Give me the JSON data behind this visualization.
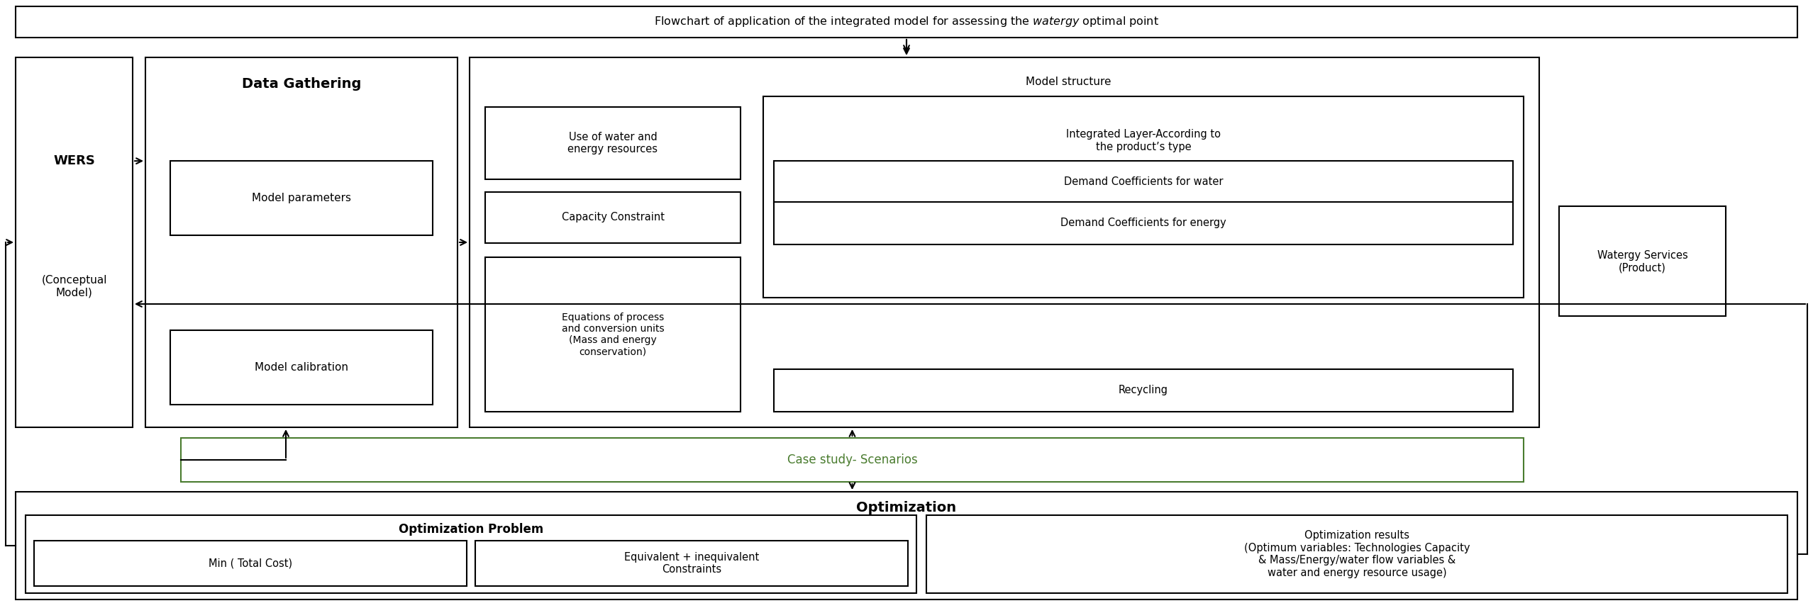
{
  "bg_color": "#ffffff",
  "box_edge_color": "#000000",
  "case_study_color": "#4a7c2f",
  "title_text": "Flowchart of application of the integrated model for assessing the $\\it{watergy}$ optimal point",
  "wers_line1": "WERS",
  "wers_line2": "(Conceptual\nModel)",
  "data_gathering_title": "Data Gathering",
  "model_params": "Model parameters",
  "model_calib": "Model calibration",
  "model_structure_label": "Model structure",
  "use_water": "Use of water and\nenergy resources",
  "capacity": "Capacity Constraint",
  "equations": "Equations of process\nand conversion units\n(Mass and energy\nconservation)",
  "integrated_layer": "Integrated Layer-According to\nthe product’s type",
  "demand_water": "Demand Coefficients for water",
  "demand_energy": "Demand Coefficients for energy",
  "recycling": "Recycling",
  "watergy_services": "Watergy Services\n(Product)",
  "case_study": "Case study- Scenarios",
  "optimization": "Optimization",
  "opt_problem": "Optimization Problem",
  "min_cost": "Min ( Total Cost)",
  "equiv_constraints": "Equivalent + inequivalent\nConstraints",
  "opt_results": "Optimization results\n(Optimum variables: Technologies Capacity\n& Mass/Energy/water flow variables &\nwater and energy resource usage)"
}
